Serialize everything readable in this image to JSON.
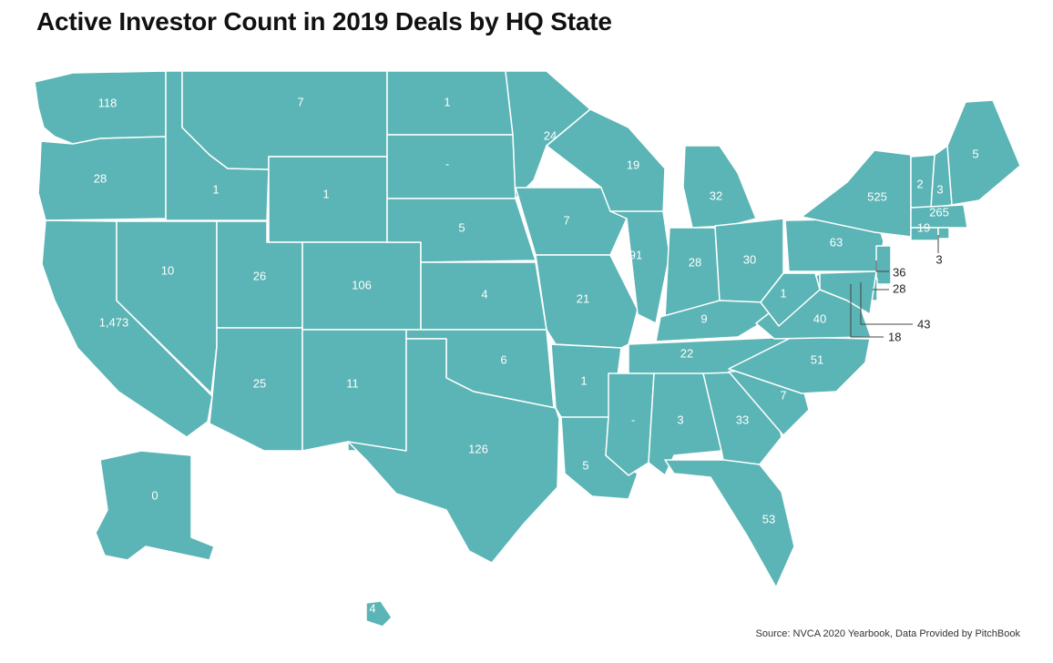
{
  "title": "Active Investor Count in 2019 Deals by HQ State",
  "source": "Source: NVCA 2020 Yearbook, Data Provided by PitchBook",
  "colors": {
    "fill": "#5bb4b5",
    "border": "#ffffff",
    "text": "#111111"
  },
  "states": [
    {
      "code": "WA",
      "value": "118"
    },
    {
      "code": "OR",
      "value": "28"
    },
    {
      "code": "CA",
      "value": "1,473"
    },
    {
      "code": "NV",
      "value": "10"
    },
    {
      "code": "ID",
      "value": "1"
    },
    {
      "code": "MT",
      "value": "7"
    },
    {
      "code": "WY",
      "value": "1"
    },
    {
      "code": "UT",
      "value": "26"
    },
    {
      "code": "AZ",
      "value": "25"
    },
    {
      "code": "CO",
      "value": "106"
    },
    {
      "code": "NM",
      "value": "11"
    },
    {
      "code": "ND",
      "value": "1"
    },
    {
      "code": "SD",
      "value": "-"
    },
    {
      "code": "NE",
      "value": "5"
    },
    {
      "code": "KS",
      "value": "4"
    },
    {
      "code": "OK",
      "value": "6"
    },
    {
      "code": "TX",
      "value": "126"
    },
    {
      "code": "MN",
      "value": "24"
    },
    {
      "code": "IA",
      "value": "7"
    },
    {
      "code": "MO",
      "value": "21"
    },
    {
      "code": "AR",
      "value": "1"
    },
    {
      "code": "LA",
      "value": "5"
    },
    {
      "code": "WI",
      "value": "19"
    },
    {
      "code": "IL",
      "value": "91"
    },
    {
      "code": "MI",
      "value": "32"
    },
    {
      "code": "IN",
      "value": "28"
    },
    {
      "code": "OH",
      "value": "30"
    },
    {
      "code": "KY",
      "value": "9"
    },
    {
      "code": "TN",
      "value": "22"
    },
    {
      "code": "MS",
      "value": "-"
    },
    {
      "code": "AL",
      "value": "3"
    },
    {
      "code": "GA",
      "value": "33"
    },
    {
      "code": "FL",
      "value": "53"
    },
    {
      "code": "SC",
      "value": "7"
    },
    {
      "code": "NC",
      "value": "51"
    },
    {
      "code": "VA",
      "value": "40"
    },
    {
      "code": "WV",
      "value": "1"
    },
    {
      "code": "PA",
      "value": "63"
    },
    {
      "code": "NY",
      "value": "525"
    },
    {
      "code": "VT",
      "value": "2"
    },
    {
      "code": "NH",
      "value": "3"
    },
    {
      "code": "ME",
      "value": "5"
    },
    {
      "code": "MA",
      "value": "265"
    },
    {
      "code": "CT",
      "value": "19"
    },
    {
      "code": "RI",
      "value": "3"
    },
    {
      "code": "NJ",
      "value": "36"
    },
    {
      "code": "DE",
      "value": "28"
    },
    {
      "code": "MD",
      "value": "43"
    },
    {
      "code": "DC",
      "value": "18"
    },
    {
      "code": "AK",
      "value": "0"
    },
    {
      "code": "HI",
      "value": "4"
    }
  ]
}
